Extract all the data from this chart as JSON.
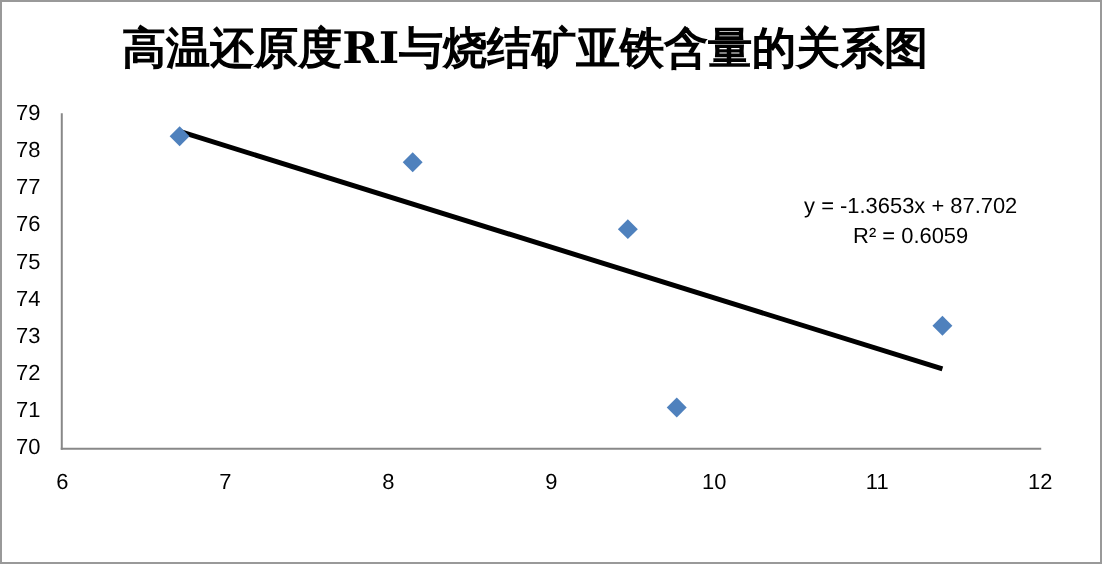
{
  "chart_data": {
    "type": "scatter",
    "title": "高温还原度RI与烧结矿亚铁含量的关系图",
    "series": [
      {
        "type": "scatter",
        "color": "#4f81bd",
        "x": [
          6.72,
          8.15,
          9.47,
          9.77,
          11.4
        ],
        "values": [
          78.4,
          77.7,
          75.9,
          71.1,
          73.3
        ],
        "marker": "diamond"
      },
      {
        "type": "line",
        "color": "#000000",
        "x": [
          6.72,
          11.4
        ],
        "values": [
          78.53,
          72.14
        ],
        "marker": "none",
        "line_style": "solid"
      }
    ],
    "xlim": [
      6,
      12
    ],
    "xticks": [
      6,
      7,
      8,
      9,
      10,
      11,
      12
    ],
    "ylim": [
      70,
      79
    ],
    "yticks": [
      70,
      71,
      72,
      73,
      74,
      75,
      76,
      77,
      78,
      79
    ],
    "grid": false,
    "legend": false,
    "annotations": [
      "y = -1.3653x + 87.702",
      "R² = 0.6059"
    ]
  }
}
